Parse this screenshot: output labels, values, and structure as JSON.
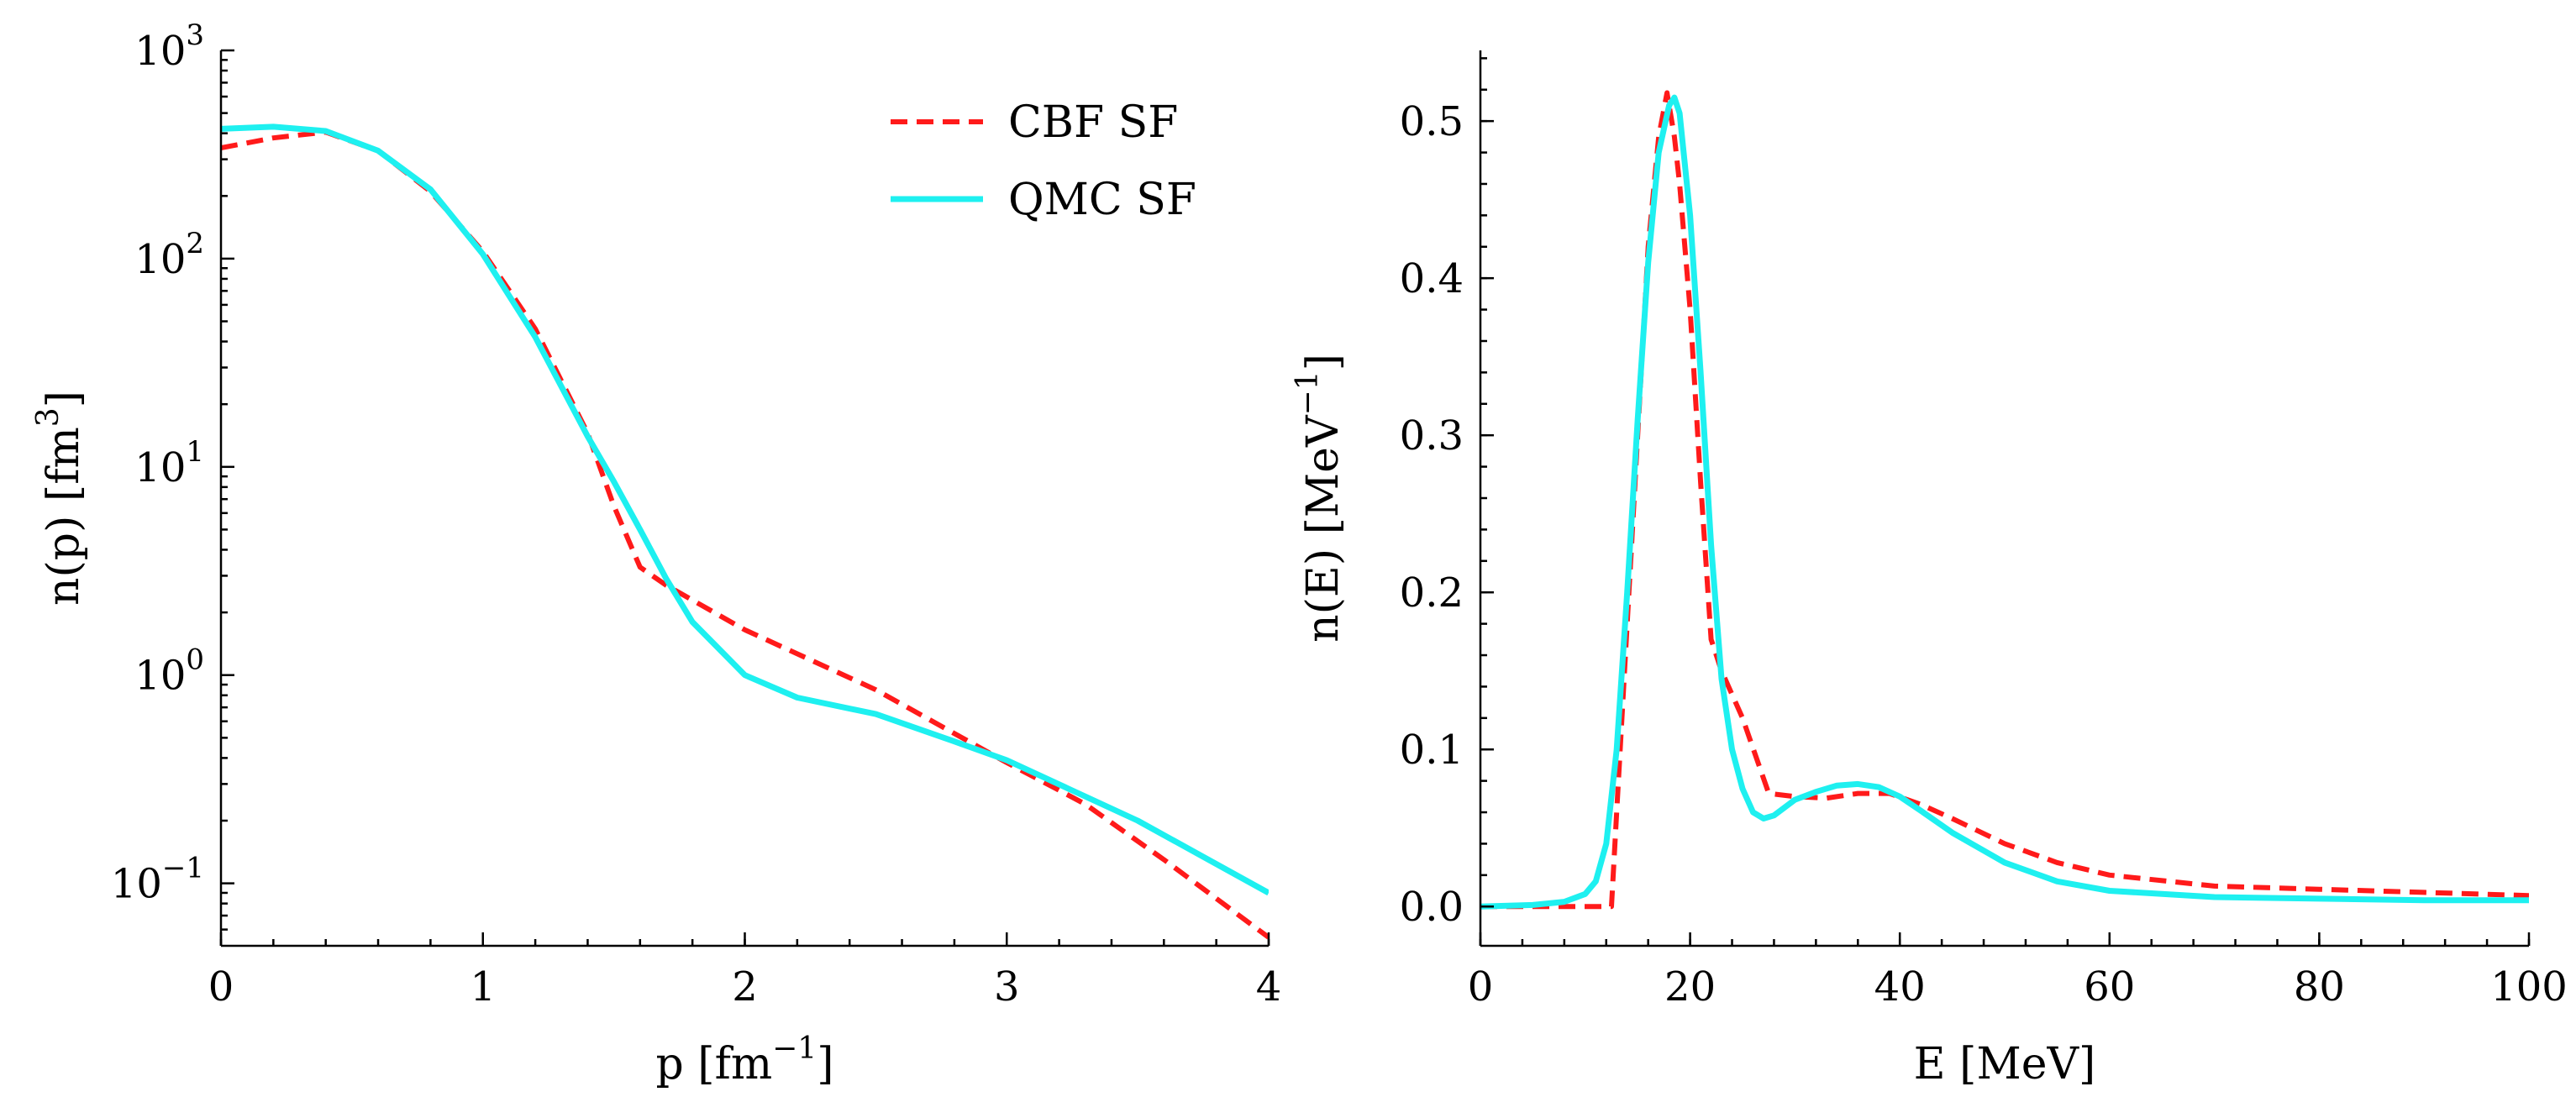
{
  "chart_data": [
    {
      "type": "line",
      "xlabel": "p [fm",
      "xlabel_sup": "−1",
      "xlabel_end": "]",
      "ylabel": "n(p) [fm",
      "ylabel_sup": "3",
      "ylabel_end": "]",
      "xlim": [
        0,
        4
      ],
      "ylim_log10": [
        -1.3,
        3
      ],
      "y_scale": "log",
      "xticks": [
        0,
        1,
        2,
        3,
        4
      ],
      "xtick_labels": [
        "0",
        "1",
        "2",
        "3",
        "4"
      ],
      "yticks_log10": [
        -1,
        0,
        1,
        2,
        3
      ],
      "ytick_base": "10",
      "ytick_exponents": [
        "−1",
        "0",
        "1",
        "2",
        "3"
      ],
      "legend_position": "top-right",
      "series": [
        {
          "name": "CBF SF",
          "color": "#ff1a1a",
          "dash": "dashed",
          "x": [
            0,
            0.2,
            0.4,
            0.6,
            0.8,
            1.0,
            1.2,
            1.4,
            1.5,
            1.6,
            1.7,
            2.0,
            2.5,
            3.0,
            3.3,
            3.6,
            4.0
          ],
          "y": [
            340,
            380,
            405,
            330,
            210,
            108,
            46,
            14.5,
            6.5,
            3.3,
            2.7,
            1.65,
            0.85,
            0.38,
            0.24,
            0.13,
            0.055
          ]
        },
        {
          "name": "QMC SF",
          "color": "#1ef0f0",
          "dash": "solid",
          "x": [
            0,
            0.2,
            0.4,
            0.6,
            0.8,
            1.0,
            1.2,
            1.4,
            1.5,
            1.6,
            1.7,
            1.8,
            2.0,
            2.2,
            2.5,
            2.8,
            3.0,
            3.5,
            4.0
          ],
          "y": [
            420,
            430,
            410,
            330,
            215,
            105,
            42,
            14,
            8.5,
            5.0,
            2.9,
            1.8,
            1.0,
            0.78,
            0.65,
            0.48,
            0.39,
            0.2,
            0.09
          ]
        }
      ]
    },
    {
      "type": "line",
      "xlabel": "E [MeV]",
      "ylabel": "n(E) [MeV",
      "ylabel_sup": "−1",
      "ylabel_end": "]",
      "xlim": [
        0,
        100
      ],
      "ylim": [
        -0.025,
        0.545
      ],
      "y_scale": "linear",
      "xticks": [
        0,
        20,
        40,
        60,
        80,
        100
      ],
      "xtick_labels": [
        "0",
        "20",
        "40",
        "60",
        "80",
        "100"
      ],
      "yticks": [
        0,
        0.1,
        0.2,
        0.3,
        0.4,
        0.5
      ],
      "ytick_labels": [
        "0.0",
        "0.1",
        "0.2",
        "0.3",
        "0.4",
        "0.5"
      ],
      "series": [
        {
          "name": "CBF SF",
          "color": "#ff1a1a",
          "dash": "dashed",
          "x": [
            0,
            12.5,
            13,
            14,
            15,
            16,
            17,
            17.8,
            18.5,
            19,
            20,
            21,
            22,
            23,
            25,
            27.5,
            30,
            33,
            36,
            39,
            42,
            45,
            50,
            55,
            60,
            70,
            80,
            90,
            100
          ],
          "y": [
            0,
            0,
            0.06,
            0.18,
            0.3,
            0.42,
            0.49,
            0.518,
            0.49,
            0.46,
            0.38,
            0.27,
            0.17,
            0.15,
            0.12,
            0.072,
            0.07,
            0.069,
            0.072,
            0.072,
            0.065,
            0.056,
            0.04,
            0.028,
            0.02,
            0.013,
            0.011,
            0.009,
            0.007
          ]
        },
        {
          "name": "QMC SF",
          "color": "#1ef0f0",
          "dash": "solid",
          "x": [
            0,
            5,
            8,
            10,
            11,
            12,
            13,
            14,
            15,
            16,
            17,
            18,
            18.5,
            19,
            20,
            21,
            22,
            23,
            24,
            25,
            26,
            27,
            28,
            29,
            30,
            32,
            34,
            36,
            38,
            40,
            42,
            45,
            50,
            55,
            60,
            70,
            80,
            90,
            100
          ],
          "y": [
            0,
            0.001,
            0.003,
            0.008,
            0.016,
            0.04,
            0.1,
            0.2,
            0.31,
            0.41,
            0.48,
            0.51,
            0.515,
            0.505,
            0.44,
            0.34,
            0.23,
            0.145,
            0.1,
            0.075,
            0.06,
            0.056,
            0.058,
            0.063,
            0.068,
            0.073,
            0.077,
            0.078,
            0.076,
            0.07,
            0.061,
            0.047,
            0.028,
            0.016,
            0.01,
            0.006,
            0.005,
            0.004,
            0.004
          ]
        }
      ]
    }
  ]
}
